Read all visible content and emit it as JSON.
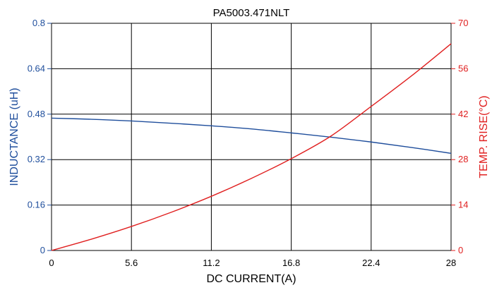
{
  "chart_data": {
    "type": "line",
    "title": "PA5003.471NLT",
    "xlabel": "DC CURRENT(A)",
    "ylabel_left": "INDUCTANCE (uH)",
    "ylabel_right": "TEMP. RISE(°C)",
    "xlim": [
      0,
      28
    ],
    "ylim_left": [
      0,
      0.8
    ],
    "ylim_right": [
      0,
      70
    ],
    "x_ticks": [
      "0",
      "5.6",
      "11.2",
      "16.8",
      "22.4",
      "28"
    ],
    "y_left_ticks": [
      "0",
      "0.16",
      "0.32",
      "0.48",
      "0.64",
      "0.8"
    ],
    "y_right_ticks": [
      "0",
      "14",
      "28",
      "42",
      "56",
      "70"
    ],
    "grid": true,
    "colors": {
      "left_axis": "#1f4e9c",
      "right_axis": "#e02020"
    },
    "series": [
      {
        "axis": "left",
        "color": "#1f4e9c",
        "x": [
          0,
          2.8,
          5.6,
          8.4,
          11.2,
          14,
          16.8,
          19.6,
          22.4,
          25.2,
          28
        ],
        "y": [
          0.466,
          0.462,
          0.456,
          0.448,
          0.439,
          0.428,
          0.414,
          0.399,
          0.382,
          0.363,
          0.342
        ]
      },
      {
        "axis": "right",
        "color": "#e02020",
        "x": [
          0,
          2.8,
          5.6,
          8.4,
          11.2,
          14,
          16.8,
          19.6,
          22.4,
          25.2,
          28
        ],
        "y": [
          0,
          3.5,
          7.4,
          11.8,
          16.7,
          22.2,
          28.3,
          35.3,
          44.4,
          53.7,
          63.7
        ]
      }
    ]
  }
}
